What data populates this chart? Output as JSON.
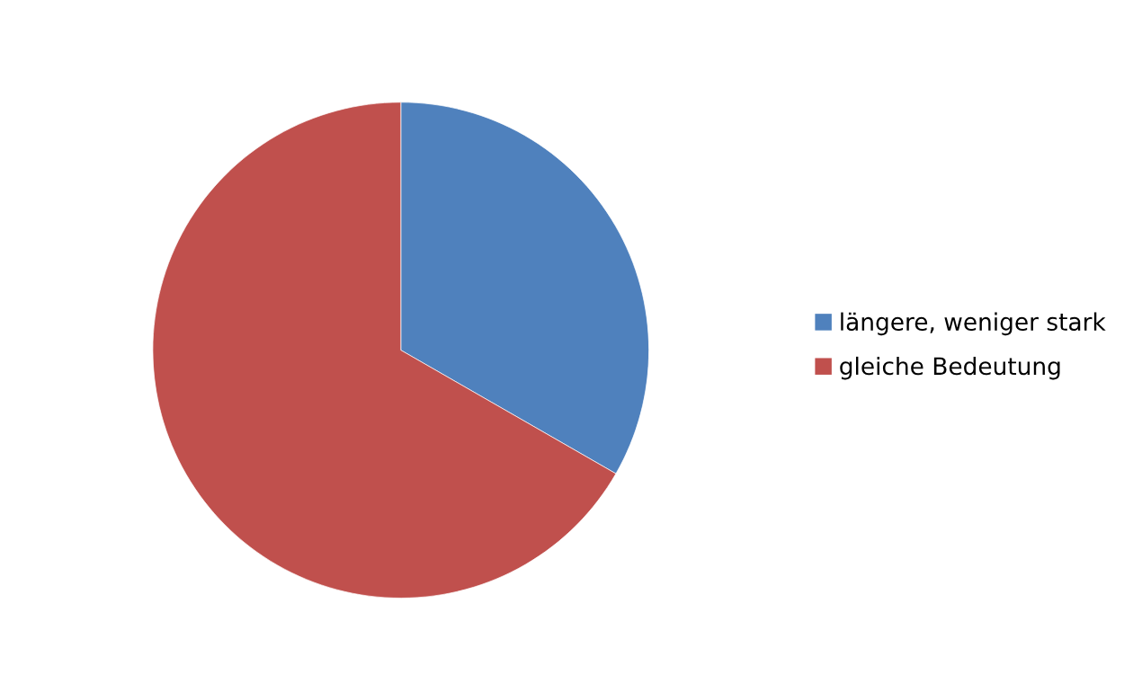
{
  "chart_data": {
    "type": "pie",
    "categories": [
      "längere, weniger stark",
      "gleiche Bedeutung"
    ],
    "values": [
      33.3,
      66.7
    ],
    "colors": [
      "#4f81bd",
      "#c0504d"
    ],
    "legend": "right"
  }
}
